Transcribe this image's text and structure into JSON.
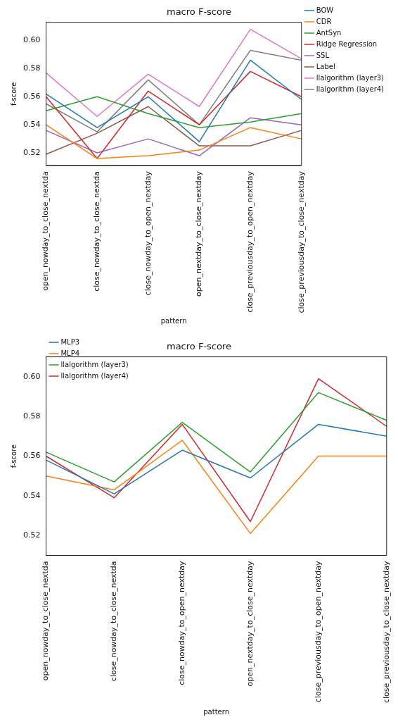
{
  "chart_data": [
    {
      "type": "line",
      "title": "macro F-score",
      "xlabel": "pattern",
      "ylabel": "f-score",
      "categories": [
        "open_nowday_to_close_nextda",
        "close_nowday_to_close_nextda",
        "close_nowday_to_open_nextday",
        "open_nextday_to_close_nextday",
        "close_previousday_to_open_nextday",
        "close_previousday_to_close_nextday"
      ],
      "series": [
        {
          "name": "BOW",
          "color": "#1f77b4",
          "values": [
            0.562,
            0.538,
            0.56,
            0.528,
            0.586,
            0.558
          ]
        },
        {
          "name": "CDR",
          "color": "#ff7f0e",
          "values": [
            0.54,
            0.516,
            0.518,
            0.522,
            0.538,
            0.53
          ]
        },
        {
          "name": "AntSyn",
          "color": "#2ca02c",
          "values": [
            0.55,
            0.56,
            0.548,
            0.538,
            0.542,
            0.548
          ]
        },
        {
          "name": "Ridge Regression",
          "color": "#d62728",
          "values": [
            0.56,
            0.516,
            0.564,
            0.54,
            0.578,
            0.56
          ]
        },
        {
          "name": "SSL",
          "color": "#9467bd",
          "values": [
            0.536,
            0.52,
            0.53,
            0.518,
            0.545,
            0.54
          ]
        },
        {
          "name": "Label",
          "color": "#8c564b",
          "values": [
            0.519,
            0.534,
            0.553,
            0.525,
            0.525,
            0.536
          ]
        },
        {
          "name": "llalgorithm (layer3)",
          "color": "#e377c2",
          "values": [
            0.577,
            0.546,
            0.576,
            0.553,
            0.608,
            0.587
          ]
        },
        {
          "name": "llalgorithm (layer4)",
          "color": "#7f7f7f",
          "values": [
            0.555,
            0.535,
            0.572,
            0.54,
            0.593,
            0.586
          ]
        }
      ],
      "ylim": [
        0.511,
        0.613
      ],
      "yticks": [
        0.52,
        0.54,
        0.56,
        0.58,
        {
          "value": 0.6,
          "label": "0.60"
        }
      ],
      "legend": "right",
      "marker": "none",
      "line_style": "solid"
    },
    {
      "type": "line",
      "title": "macro F-score",
      "xlabel": "pattern",
      "ylabel": "f-score",
      "categories": [
        "open_nowday_to_close_nextda",
        "close_nowday_to_close_nextda",
        "close_nowday_to_open_nextday",
        "open_nextday_to_close_nextday",
        "close_previousday_to_open_nextday",
        "close_previousday_to_close_nextday"
      ],
      "series": [
        {
          "name": "MLP3",
          "color": "#1f77b4",
          "values": [
            0.558,
            0.541,
            0.563,
            0.549,
            0.576,
            0.57
          ]
        },
        {
          "name": "MLP4",
          "color": "#ff7f0e",
          "values": [
            0.55,
            0.543,
            0.568,
            0.521,
            0.56,
            0.56
          ]
        },
        {
          "name": "llalgorithm (layer3)",
          "color": "#2ca02c",
          "values": [
            0.562,
            0.547,
            0.577,
            0.552,
            0.592,
            0.578
          ]
        },
        {
          "name": "llalgorithm (layer4)",
          "color": "#d62728",
          "values": [
            0.56,
            0.539,
            0.576,
            0.527,
            0.599,
            0.575
          ]
        }
      ],
      "ylim": [
        0.51,
        0.61
      ],
      "yticks": [
        0.52,
        0.54,
        0.56,
        0.58,
        {
          "value": 0.6,
          "label": "0.60"
        }
      ],
      "legend": "top left",
      "marker": "none",
      "line_style": "solid"
    }
  ]
}
